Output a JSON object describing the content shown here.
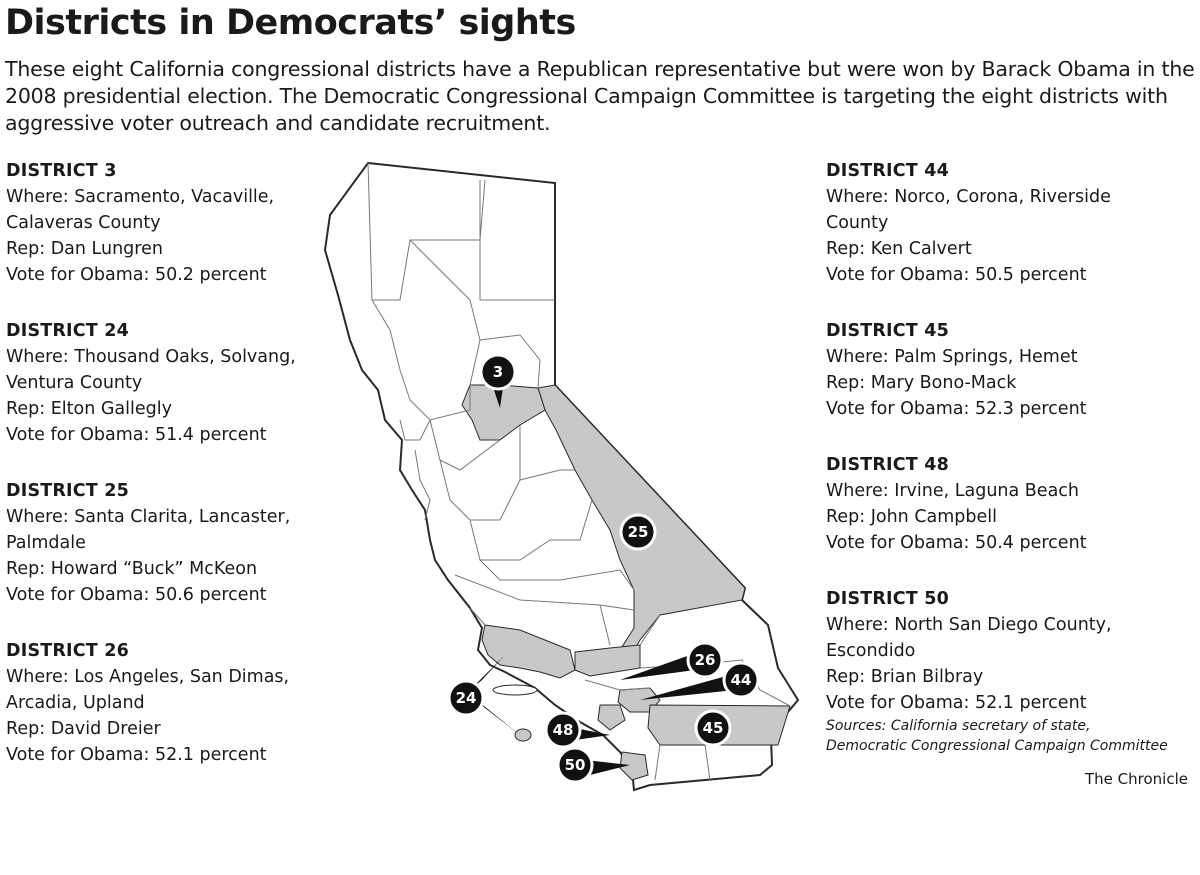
{
  "title": "Districts in Democrats’ sights",
  "intro": "These eight California congressional districts have a Republican representative but were won by Barack Obama in the 2008 presidential election. The Democratic Congressional Campaign Committee is targeting the eight districts with aggressive voter outreach and candidate recruitment.",
  "left_districts": [
    {
      "name": "DISTRICT 3",
      "lines": [
        "Where: Sacramento, Vacaville,",
        "Calaveras County",
        "Rep: Dan Lungren",
        "Vote for Obama: 50.2 percent"
      ]
    },
    {
      "name": "DISTRICT 24",
      "lines": [
        "Where: Thousand Oaks, Solvang,",
        "Ventura County",
        "Rep: Elton Gallegly",
        "Vote for Obama: 51.4 percent"
      ]
    },
    {
      "name": "DISTRICT 25",
      "lines": [
        "Where: Santa Clarita, Lancaster,",
        "Palmdale",
        "Rep: Howard “Buck” McKeon",
        "Vote for Obama: 50.6 percent"
      ]
    },
    {
      "name": "DISTRICT 26",
      "lines": [
        "Where: Los Angeles, San Dimas,",
        "Arcadia, Upland",
        "Rep: David Dreier",
        "Vote for Obama: 52.1 percent"
      ]
    }
  ],
  "right_districts": [
    {
      "name": "DISTRICT 44",
      "lines": [
        "Where: Norco, Corona, Riverside",
        "County",
        "Rep: Ken Calvert",
        "Vote for Obama: 50.5 percent"
      ]
    },
    {
      "name": "DISTRICT 45",
      "lines": [
        "Where: Palm Springs, Hemet",
        "Rep: Mary Bono-Mack",
        "Vote for Obama: 52.3 percent"
      ]
    },
    {
      "name": "DISTRICT 48",
      "lines": [
        "Where: Irvine, Laguna Beach",
        "Rep: John Campbell",
        "Vote for Obama: 50.4 percent"
      ]
    },
    {
      "name": "DISTRICT 50",
      "lines": [
        "Where: North San Diego County,",
        "Escondido",
        "Rep: Brian Bilbray",
        "Vote for Obama: 52.1 percent"
      ]
    }
  ],
  "sources": [
    "Sources: California secretary of state,",
    "Democratic Congressional Campaign Committee"
  ],
  "credit": "The Chronicle",
  "map": {
    "markers": [
      "3",
      "25",
      "26",
      "44",
      "24",
      "48",
      "45",
      "50"
    ],
    "colors": {
      "highlight": "#c8c8c8",
      "outline": "#2a2a2a",
      "marker": "#111111",
      "land": "#ffffff"
    }
  }
}
